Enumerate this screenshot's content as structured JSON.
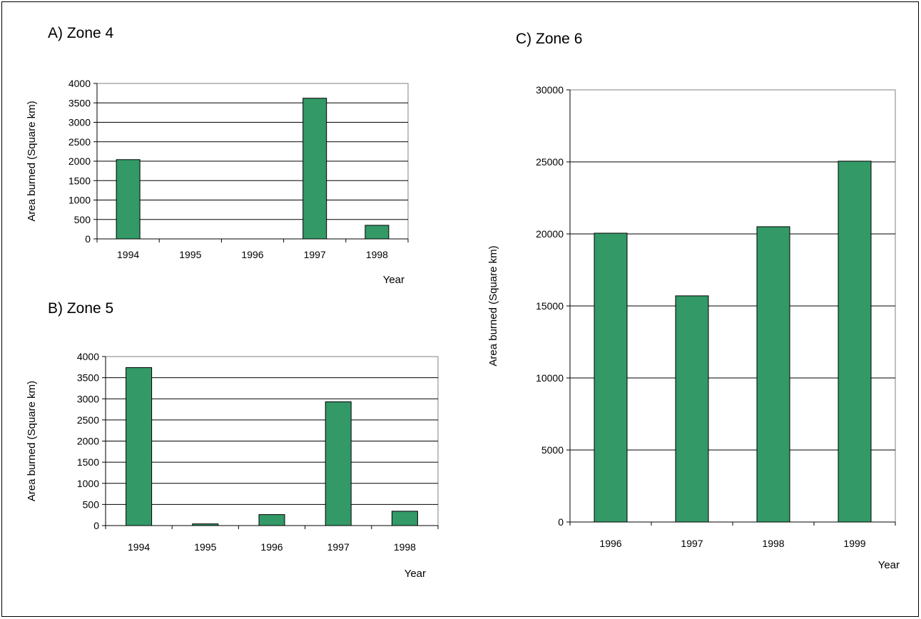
{
  "chart_data": [
    {
      "type": "bar",
      "title": "A) Zone 4",
      "categories": [
        "1994",
        "1995",
        "1996",
        "1997",
        "1998"
      ],
      "series": [
        {
          "values": [
            2040,
            0,
            0,
            3620,
            350
          ]
        }
      ],
      "xlabel": "Year",
      "ylabel": "Area burned (Square km)",
      "ylim": [
        0,
        4000
      ],
      "yticks": [
        0,
        500,
        1000,
        1500,
        2000,
        2500,
        3000,
        3500,
        4000
      ],
      "grid": true,
      "legend": "none",
      "bar_color": "#339966"
    },
    {
      "type": "bar",
      "title": "B) Zone 5",
      "categories": [
        "1994",
        "1995",
        "1996",
        "1997",
        "1998"
      ],
      "series": [
        {
          "values": [
            3740,
            40,
            260,
            2930,
            340
          ]
        }
      ],
      "xlabel": "Year",
      "ylabel": "Area burned (Square km)",
      "ylim": [
        0,
        4000
      ],
      "yticks": [
        0,
        500,
        1000,
        1500,
        2000,
        2500,
        3000,
        3500,
        4000
      ],
      "grid": true,
      "legend": "none",
      "bar_color": "#339966"
    },
    {
      "type": "bar",
      "title": "C) Zone 6",
      "categories": [
        "1996",
        "1997",
        "1998",
        "1999"
      ],
      "series": [
        {
          "values": [
            20050,
            15700,
            20500,
            25050
          ]
        }
      ],
      "xlabel": "Year",
      "ylabel": "Area burned (Square km)",
      "ylim": [
        0,
        30000
      ],
      "yticks": [
        0,
        5000,
        10000,
        15000,
        20000,
        25000,
        30000
      ],
      "grid": true,
      "legend": "none",
      "bar_color": "#339966"
    }
  ]
}
